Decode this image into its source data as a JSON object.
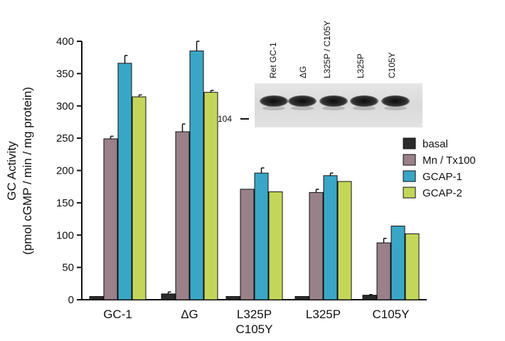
{
  "chart_data": {
    "type": "bar",
    "ylabel_line1": "GC Activity",
    "ylabel_line2": "(pmol cGMP / min / mg protein)",
    "ylim": [
      0,
      400
    ],
    "yticks": [
      0,
      50,
      100,
      150,
      200,
      250,
      300,
      350,
      400
    ],
    "categories": [
      {
        "lines": [
          "GC-1"
        ]
      },
      {
        "lines": [
          "ΔG"
        ]
      },
      {
        "lines": [
          "L325P",
          "C105Y"
        ]
      },
      {
        "lines": [
          "L325P"
        ]
      },
      {
        "lines": [
          "C105Y"
        ]
      }
    ],
    "series": [
      {
        "name": "basal",
        "color": "#2b2b2b",
        "values": [
          5,
          9,
          5,
          5,
          7
        ],
        "errors": [
          0,
          3,
          0,
          0,
          1
        ]
      },
      {
        "name": "Mn / Tx100",
        "color": "#9a8088",
        "values": [
          249,
          260,
          171,
          166,
          88
        ],
        "errors": [
          4,
          12,
          0,
          5,
          7
        ]
      },
      {
        "name": "GCAP-1",
        "color": "#3aa6c6",
        "values": [
          366,
          385,
          196,
          192,
          114
        ],
        "errors": [
          12,
          15,
          8,
          4,
          0
        ]
      },
      {
        "name": "GCAP-2",
        "color": "#c4d65a",
        "values": [
          314,
          321,
          167,
          183,
          102
        ],
        "errors": [
          3,
          3,
          0,
          0,
          0
        ]
      }
    ],
    "legend_position": "right",
    "grid": false
  },
  "inset_blot": {
    "lanes": [
      "Ret GC-1",
      "ΔG",
      "L325P / C105Y",
      "L325P",
      "C105Y"
    ],
    "marker_label": "104"
  }
}
